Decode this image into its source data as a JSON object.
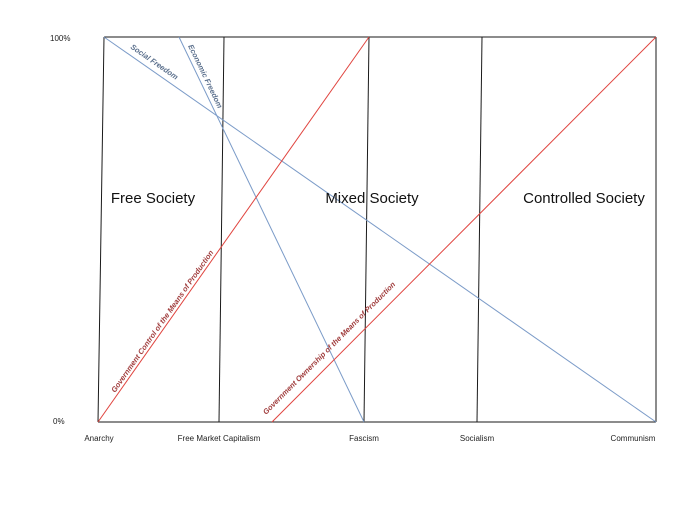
{
  "diagram": {
    "y_axis": {
      "top_label": "100%",
      "bottom_label": "0%"
    },
    "x_axis": {
      "labels": [
        "Anarchy",
        "Free Market Capitalism",
        "Fascism",
        "Socialism",
        "Communism"
      ]
    },
    "regions": [
      "Free Society",
      "Mixed Society",
      "Controlled Society"
    ],
    "lines": {
      "social_freedom": "Social Freedom",
      "economic_freedom": "Economic Freedom",
      "gov_control": "Government Control of the Means of Production",
      "gov_ownership": "Government Ownership of the Means of Production"
    },
    "colors": {
      "frame": "#1a1a1a",
      "freedom_line": "#7b9bc8",
      "freedom_label": "#5a6f8c",
      "government_line": "#e0443f",
      "government_label": "#a03c3c"
    }
  }
}
